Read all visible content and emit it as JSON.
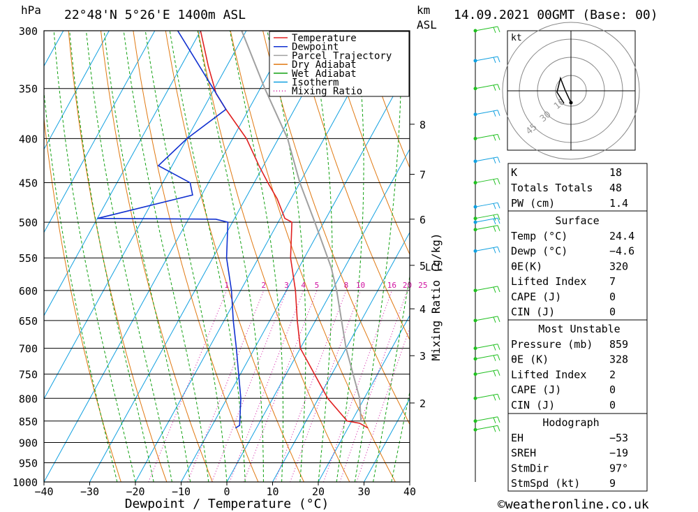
{
  "header": {
    "pressure_unit": "hPa",
    "location": "22°48'N  5°26'E  1400m  ASL",
    "km_label": "km",
    "asl_label": "ASL",
    "datetime": "14.09.2021  00GMT  (Base: 00)"
  },
  "colors": {
    "temperature": "#e02020",
    "dewpoint": "#1030d0",
    "parcel": "#a0a0a0",
    "dry_adiabat": "#e07810",
    "wet_adiabat": "#10a010",
    "isotherm": "#10a0e0",
    "mixing_ratio": "#d010a0",
    "wind_barb_low": "#20c020",
    "wind_barb_high": "#10a0e0"
  },
  "legend": [
    "Temperature",
    "Dewpoint",
    "Parcel Trajectory",
    "Dry Adiabat",
    "Wet Adiabat",
    "Isotherm",
    "Mixing Ratio"
  ],
  "chart_data": {
    "type": "line",
    "xlabel": "Dewpoint / Temperature (°C)",
    "ylabel": "hPa",
    "secondary_ylabel": "Mixing Ratio (g/kg)",
    "xlim": [
      -40,
      40
    ],
    "ylim": [
      1000,
      300
    ],
    "x_ticks": [
      -40,
      -30,
      -20,
      -10,
      0,
      10,
      20,
      30,
      40
    ],
    "pressure_ticks": [
      300,
      350,
      400,
      450,
      500,
      550,
      600,
      650,
      700,
      750,
      800,
      850,
      900,
      950,
      1000
    ],
    "km_ticks": [
      {
        "km": 2,
        "p": 810
      },
      {
        "km": 3,
        "p": 714
      },
      {
        "km": 4,
        "p": 630
      },
      {
        "km": 5,
        "p": 561
      },
      {
        "km": 6,
        "p": 496
      },
      {
        "km": 7,
        "p": 440
      },
      {
        "km": 8,
        "p": 385
      }
    ],
    "lcl_label": "LCL",
    "lcl_pressure": 564,
    "mixing_ratio_labels": [
      1,
      2,
      3,
      4,
      5,
      8,
      10,
      16,
      20,
      25
    ],
    "series": [
      {
        "name": "Temperature",
        "points": [
          [
            866,
            24.4
          ],
          [
            855,
            22
          ],
          [
            850,
            19
          ],
          [
            800,
            12
          ],
          [
            700,
            0
          ],
          [
            650,
            -4
          ],
          [
            600,
            -8
          ],
          [
            550,
            -13
          ],
          [
            500,
            -17
          ],
          [
            495,
            -19
          ],
          [
            470,
            -23
          ],
          [
            450,
            -27
          ],
          [
            430,
            -31
          ],
          [
            400,
            -37
          ],
          [
            370,
            -45
          ],
          [
            355,
            -49
          ],
          [
            330,
            -54
          ],
          [
            300,
            -60
          ]
        ]
      },
      {
        "name": "Dewpoint",
        "points": [
          [
            866,
            -4.6
          ],
          [
            860,
            -4
          ],
          [
            800,
            -7
          ],
          [
            700,
            -14
          ],
          [
            650,
            -18
          ],
          [
            600,
            -22
          ],
          [
            550,
            -27
          ],
          [
            500,
            -31
          ],
          [
            496,
            -34
          ],
          [
            495,
            -60
          ],
          [
            490,
            -57
          ],
          [
            465,
            -42
          ],
          [
            450,
            -44
          ],
          [
            430,
            -53
          ],
          [
            400,
            -50
          ],
          [
            370,
            -45
          ],
          [
            300,
            -65
          ]
        ]
      },
      {
        "name": "Parcel Trajectory",
        "points": [
          [
            850,
            22
          ],
          [
            800,
            19
          ],
          [
            700,
            10
          ],
          [
            600,
            1
          ],
          [
            564,
            -3
          ],
          [
            500,
            -12
          ],
          [
            450,
            -20
          ],
          [
            400,
            -28
          ],
          [
            350,
            -39
          ],
          [
            300,
            -51
          ]
        ]
      }
    ]
  },
  "hodograph": {
    "unit": "kt",
    "ring_labels": [
      "10",
      "30",
      "45"
    ]
  },
  "indices": {
    "k_label": "K",
    "k": "18",
    "tt_label": "Totals Totals",
    "tt": "48",
    "pw_label": "PW (cm)",
    "pw": "1.4"
  },
  "surface": {
    "title": "Surface",
    "rows": [
      {
        "label": "Temp (°C)",
        "value": "24.4"
      },
      {
        "label": "Dewp (°C)",
        "value": "−4.6"
      },
      {
        "label": "θE(K)",
        "value": "320"
      },
      {
        "label": "Lifted Index",
        "value": "7"
      },
      {
        "label": "CAPE (J)",
        "value": "0"
      },
      {
        "label": "CIN (J)",
        "value": "0"
      }
    ]
  },
  "most_unstable": {
    "title": "Most Unstable",
    "rows": [
      {
        "label": "Pressure (mb)",
        "value": "859"
      },
      {
        "label": "θE (K)",
        "value": "328"
      },
      {
        "label": "Lifted Index",
        "value": "2"
      },
      {
        "label": "CAPE (J)",
        "value": "0"
      },
      {
        "label": "CIN (J)",
        "value": "0"
      }
    ]
  },
  "hodo_params": {
    "title": "Hodograph",
    "rows": [
      {
        "label": "EH",
        "value": "−53"
      },
      {
        "label": "SREH",
        "value": "−19"
      },
      {
        "label": "StmDir",
        "value": "97°"
      },
      {
        "label": "StmSpd (kt)",
        "value": "9"
      }
    ]
  },
  "footer": {
    "copyright": "©weatheronline.co.uk"
  }
}
